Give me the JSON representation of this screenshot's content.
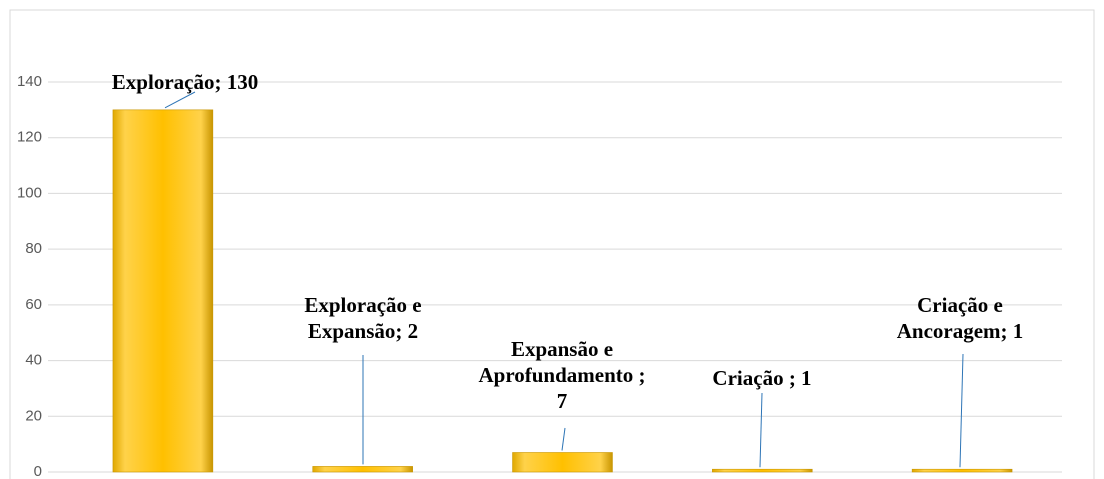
{
  "chart_data": {
    "type": "bar",
    "categories": [
      null,
      null,
      null,
      null,
      null
    ],
    "values": [
      130,
      2,
      7,
      1,
      1
    ],
    "value_labels": [
      "Exploração; 130",
      "Exploração e Expansão; 2",
      "Expansão e Aprofundamento ; 7",
      "Criação ; 1",
      "Criação e Ancoragem; 1"
    ],
    "color": "#ffc000",
    "ylim": [
      0,
      140
    ],
    "yticks": [
      0,
      20,
      40,
      60,
      80,
      100,
      120,
      140
    ],
    "grid": true
  }
}
